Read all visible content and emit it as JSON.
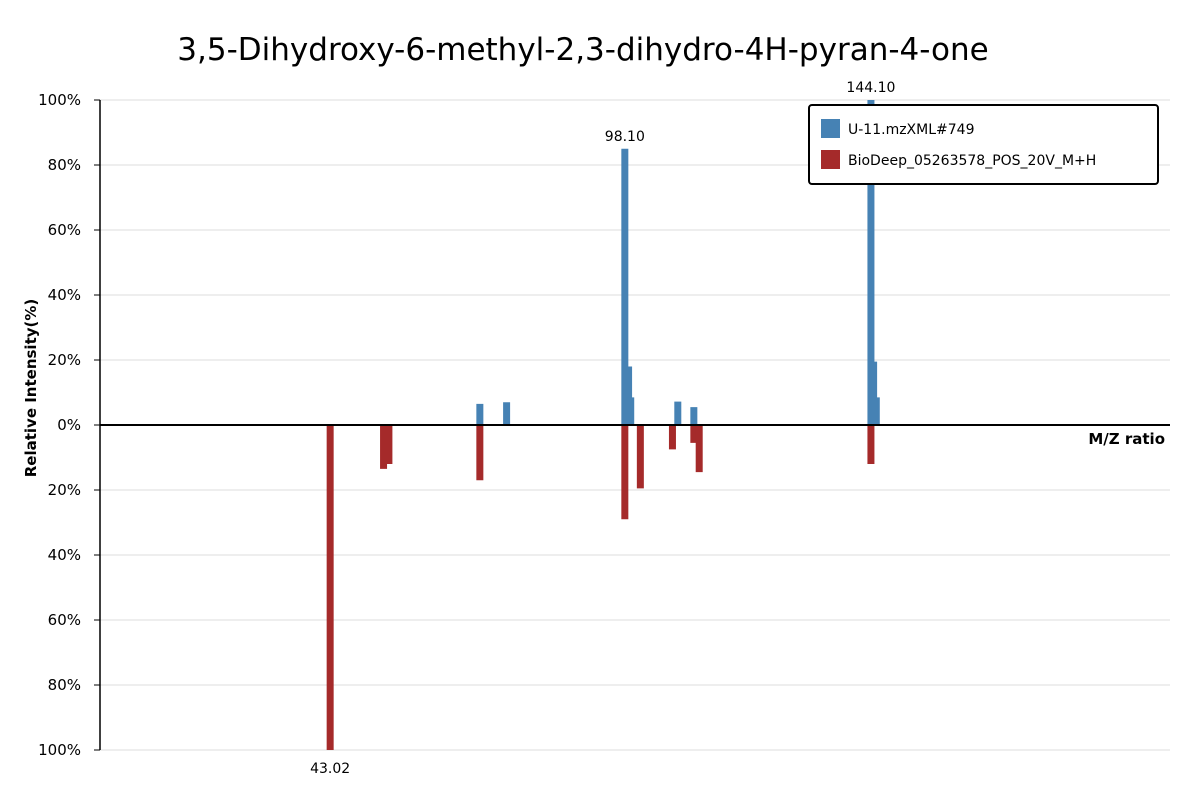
{
  "chart_data": {
    "type": "bar",
    "title": "3,5-Dihydroxy-6-methyl-2,3-dihydro-4H-pyran-4-one",
    "xlabel": "M/Z ratio",
    "ylabel": "Relative Intensity(%)",
    "ylim": [
      -100,
      100
    ],
    "xlim": [
      0,
      200
    ],
    "y_ticks": [
      {
        "value": 100,
        "label": "100%"
      },
      {
        "value": 80,
        "label": "80%"
      },
      {
        "value": 60,
        "label": "60%"
      },
      {
        "value": 40,
        "label": "40%"
      },
      {
        "value": 20,
        "label": "20%"
      },
      {
        "value": 0,
        "label": "0%"
      },
      {
        "value": -20,
        "label": "20%"
      },
      {
        "value": -40,
        "label": "40%"
      },
      {
        "value": -60,
        "label": "60%"
      },
      {
        "value": -80,
        "label": "80%"
      },
      {
        "value": -100,
        "label": "100%"
      }
    ],
    "grid": true,
    "legend_position": "top-right",
    "series": [
      {
        "name": "U-11.mzXML#749",
        "color": "#4682b4",
        "direction": "up",
        "peaks": [
          {
            "mz": 71.0,
            "intensity": 6.5
          },
          {
            "mz": 76.0,
            "intensity": 7.0
          },
          {
            "mz": 98.1,
            "intensity": 85.0,
            "label": "98.10"
          },
          {
            "mz": 98.8,
            "intensity": 18.0
          },
          {
            "mz": 99.2,
            "intensity": 8.5
          },
          {
            "mz": 108.0,
            "intensity": 7.2
          },
          {
            "mz": 111.0,
            "intensity": 5.5
          },
          {
            "mz": 144.1,
            "intensity": 100.0,
            "label": "144.10"
          },
          {
            "mz": 144.6,
            "intensity": 19.5
          },
          {
            "mz": 145.1,
            "intensity": 8.5
          }
        ]
      },
      {
        "name": "BioDeep_05263578_POS_20V_M+H",
        "color": "#a52a2a",
        "direction": "down",
        "peaks": [
          {
            "mz": 43.02,
            "intensity": 100.0,
            "label": "43.02"
          },
          {
            "mz": 53.0,
            "intensity": 13.5
          },
          {
            "mz": 54.0,
            "intensity": 12.0
          },
          {
            "mz": 71.0,
            "intensity": 17.0
          },
          {
            "mz": 98.1,
            "intensity": 29.0
          },
          {
            "mz": 101.0,
            "intensity": 19.5
          },
          {
            "mz": 107.0,
            "intensity": 7.5
          },
          {
            "mz": 111.0,
            "intensity": 5.5
          },
          {
            "mz": 112.0,
            "intensity": 14.5
          },
          {
            "mz": 144.1,
            "intensity": 12.0
          }
        ]
      }
    ]
  }
}
